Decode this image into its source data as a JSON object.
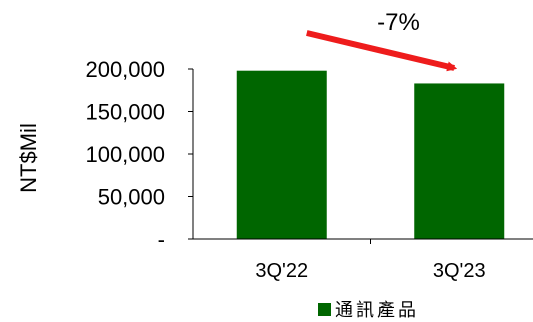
{
  "chart_data": {
    "type": "bar",
    "categories": [
      "3Q'22",
      "3Q'23"
    ],
    "series": [
      {
        "name": "通訊產品",
        "values": [
          198000,
          183000
        ],
        "color": "#006600"
      }
    ],
    "ylabel": "NT$Mil",
    "ylim": [
      0,
      200000
    ],
    "yticks": [
      0,
      50000,
      100000,
      150000,
      200000
    ],
    "ytick_labels": [
      "-",
      "50,000",
      "100,000",
      "150,000",
      "200,000"
    ],
    "annotation": {
      "text": "-7%",
      "arrow_color": "#ee1c1c"
    },
    "legend": "bottom-right",
    "grid": false
  }
}
